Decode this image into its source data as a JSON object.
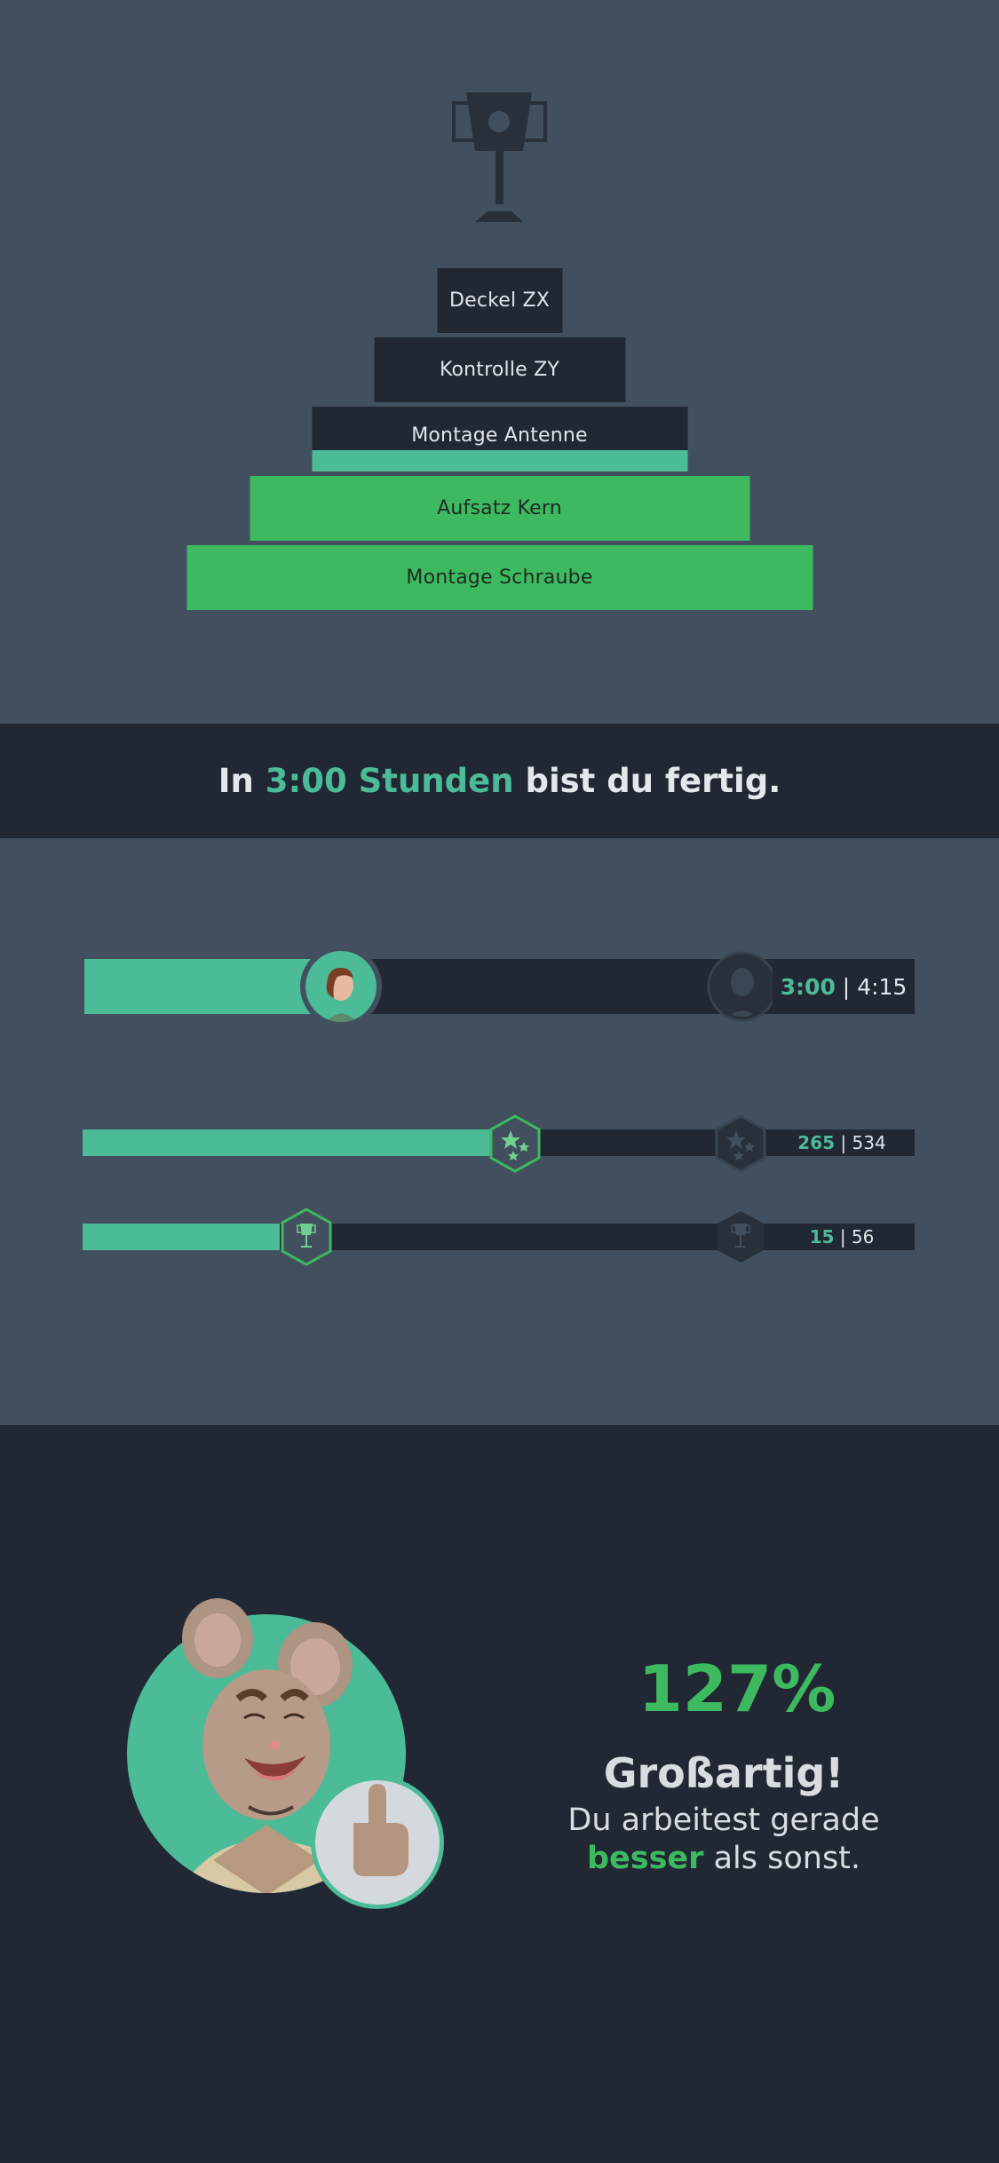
{
  "pyramid": {
    "steps": [
      {
        "label": "Deckel ZX",
        "state": "open"
      },
      {
        "label": "Kontrolle ZY",
        "state": "open"
      },
      {
        "label": "Montage Antenne",
        "state": "in-progress"
      },
      {
        "label": "Aufsatz Kern",
        "state": "done"
      },
      {
        "label": "Montage Schraube",
        "state": "done"
      }
    ]
  },
  "banner": {
    "prefix": "In",
    "highlight": "3:00 Stunden",
    "suffix": "bist du fertig."
  },
  "progress": {
    "time": {
      "current": "3:00",
      "separator": "|",
      "total": "4:15",
      "fraction": 0.29
    },
    "stars": {
      "current": "265",
      "separator": "|",
      "total": "534",
      "fraction": 0.5
    },
    "trophies": {
      "current": "15",
      "separator": "|",
      "total": "56",
      "fraction": 0.27
    }
  },
  "result": {
    "percent": "127%",
    "title": "Großartig!",
    "line1": "Du arbeitest gerade",
    "line2_highlight": "besser",
    "line2_rest": "als sonst."
  },
  "colors": {
    "accent_teal": "#4bbb98",
    "accent_green": "#3dba60",
    "dark": "#212834",
    "slate": "#414f5e"
  }
}
